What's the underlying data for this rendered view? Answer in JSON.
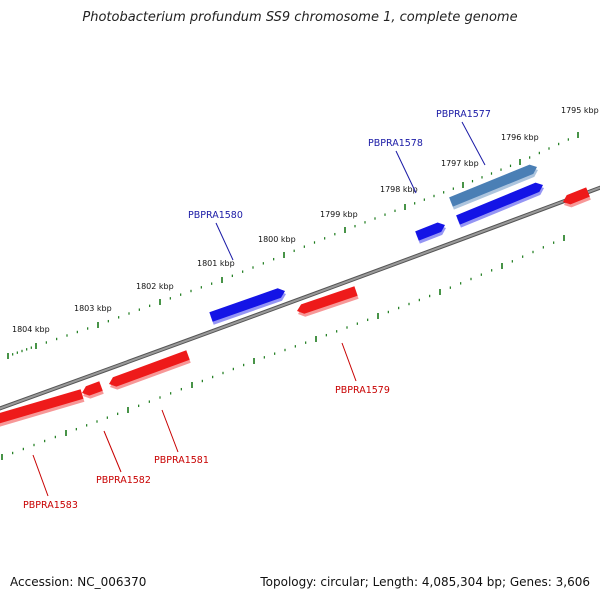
{
  "title": "Photobacterium profundum SS9 chromosome 1, complete genome",
  "footer": {
    "accession": "Accession: NC_006370",
    "summary": "Topology: circular; Length: 4,085,304 bp; Genes: 3,606"
  },
  "colors": {
    "forward_gene": "#1414e6",
    "forward_gene_selected": "#4a7fb5",
    "reverse_gene": "#ee1a1a",
    "backbone": "#808080",
    "ticks": "#1a7a1a",
    "forward_label": "#1a1aa6",
    "reverse_label": "#c80000"
  },
  "kbp_labels": [
    "1795 kbp",
    "1796 kbp",
    "1797 kbp",
    "1798 kbp",
    "1799 kbp",
    "1800 kbp",
    "1801 kbp",
    "1802 kbp",
    "1803 kbp",
    "1804 kbp"
  ],
  "genes": [
    {
      "name": "PBPRA1577",
      "strand": "+",
      "highlight": true
    },
    {
      "name": "PBPRA1578",
      "strand": "+"
    },
    {
      "name": "PBPRA1580",
      "strand": "+"
    },
    {
      "name": "PBPRA1579",
      "strand": "-"
    },
    {
      "name": "PBPRA1581",
      "strand": "-"
    },
    {
      "name": "PBPRA1582",
      "strand": "-"
    },
    {
      "name": "PBPRA1583",
      "strand": "-"
    }
  ]
}
